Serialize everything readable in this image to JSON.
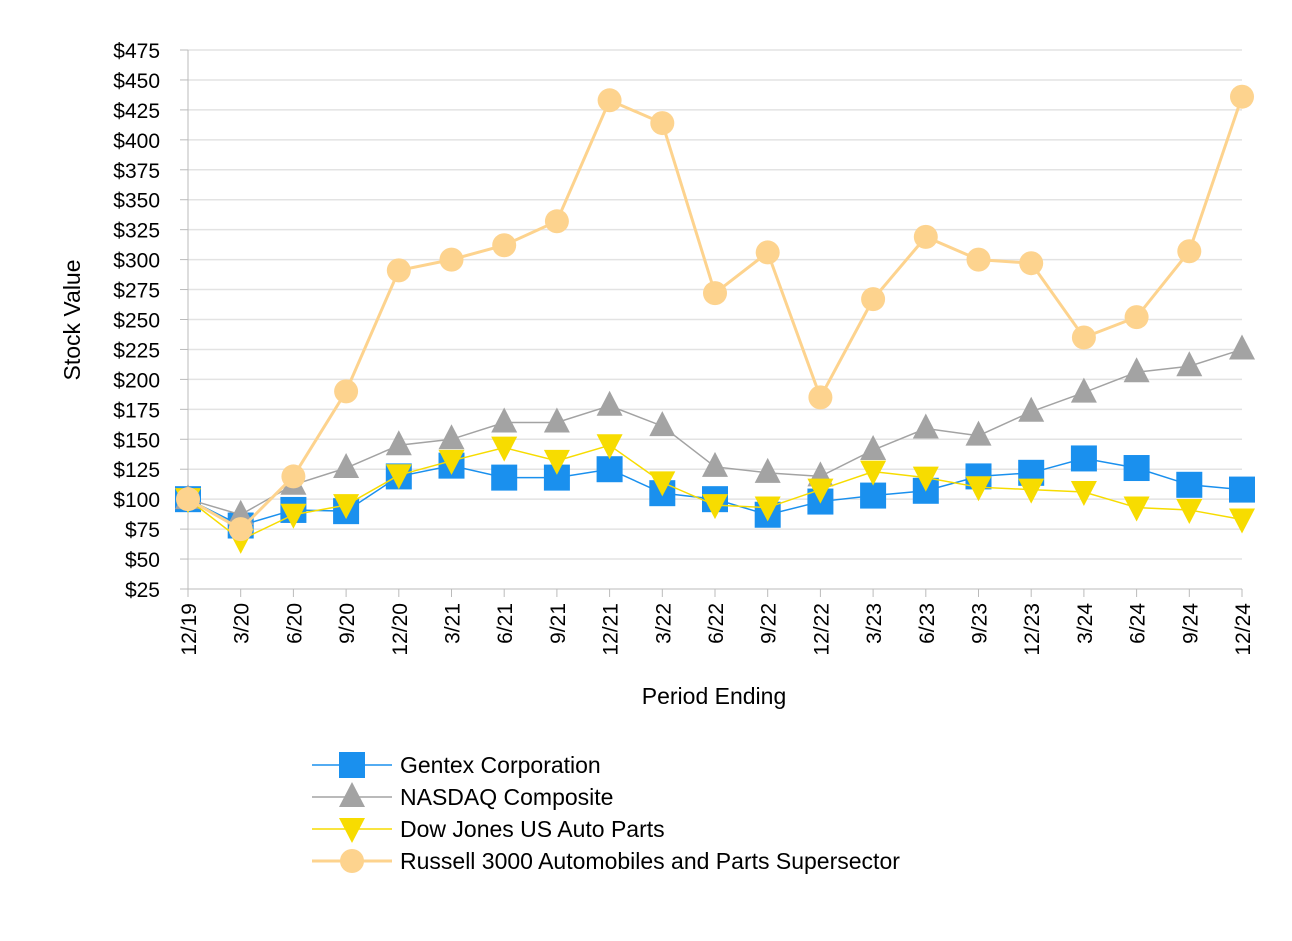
{
  "chart_data": {
    "type": "line",
    "title": "",
    "xlabel": "Period Ending",
    "ylabel": "Stock Value",
    "ylim": [
      25,
      475
    ],
    "yticks": [
      "$25",
      "$50",
      "$75",
      "$100",
      "$125",
      "$150",
      "$175",
      "$200",
      "$225",
      "$250",
      "$275",
      "$300",
      "$325",
      "$350",
      "$375",
      "$400",
      "$425",
      "$450",
      "$475"
    ],
    "grid": "horizontal",
    "legend": "bottom",
    "categories": [
      "12/19",
      "3/20",
      "6/20",
      "9/20",
      "12/20",
      "3/21",
      "6/21",
      "9/21",
      "12/21",
      "3/22",
      "6/22",
      "9/22",
      "12/22",
      "3/23",
      "6/23",
      "9/23",
      "12/23",
      "3/24",
      "6/24",
      "9/24",
      "12/24"
    ],
    "series": [
      {
        "name": "Gentex Corporation",
        "color": "#1a90ee",
        "marker": "square",
        "values": [
          100,
          78,
          91,
          90,
          119,
          128,
          118,
          118,
          125,
          105,
          100,
          87,
          98,
          103,
          107,
          119,
          122,
          134,
          126,
          112,
          108
        ]
      },
      {
        "name": "NASDAQ Composite",
        "color": "#a3a3a3",
        "marker": "triangle-up",
        "values": [
          100,
          87,
          112,
          126,
          145,
          150,
          164,
          164,
          178,
          161,
          127,
          122,
          119,
          141,
          159,
          153,
          173,
          189,
          206,
          211,
          225
        ]
      },
      {
        "name": "Dow Jones US Auto Parts",
        "color": "#f7dc00",
        "marker": "triangle-down",
        "values": [
          100,
          66,
          87,
          95,
          120,
          132,
          143,
          132,
          145,
          114,
          95,
          93,
          108,
          123,
          118,
          110,
          108,
          106,
          93,
          91,
          83
        ]
      },
      {
        "name": "Russell 3000 Automobiles and Parts Supersector",
        "color": "#fdd38e",
        "marker": "circle",
        "values": [
          100,
          75,
          119,
          190,
          291,
          300,
          312,
          332,
          433,
          414,
          272,
          306,
          185,
          267,
          319,
          300,
          297,
          235,
          252,
          307,
          436
        ]
      }
    ]
  }
}
